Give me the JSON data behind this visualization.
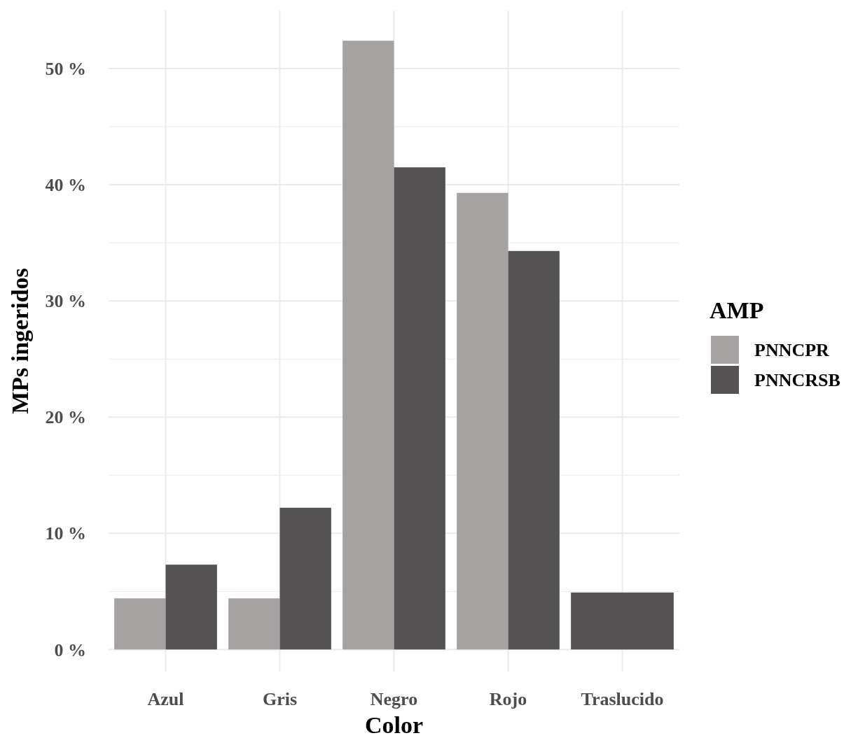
{
  "chart_data": {
    "type": "bar",
    "xlabel": "Color",
    "ylabel": "MPs ingeridos",
    "legend_title": "AMP",
    "categories": [
      "Azul",
      "Gris",
      "Negro",
      "Rojo",
      "Traslucido"
    ],
    "series": [
      {
        "name": "PNNCPR",
        "color": "#a6a2a1",
        "values": [
          4.4,
          4.4,
          52.4,
          39.3,
          null
        ]
      },
      {
        "name": "PNNCRSB",
        "color": "#545253",
        "values": [
          7.3,
          12.2,
          41.5,
          34.3,
          4.9
        ]
      }
    ],
    "ylim": [
      -1.9,
      55
    ],
    "yticks": [
      {
        "value": 0,
        "label": "0 %"
      },
      {
        "value": 10,
        "label": "10 %"
      },
      {
        "value": 20,
        "label": "20 %"
      },
      {
        "value": 30,
        "label": "30 %"
      },
      {
        "value": 40,
        "label": "40 %"
      },
      {
        "value": 50,
        "label": "50 %"
      }
    ],
    "grid": true,
    "legend": "right"
  }
}
